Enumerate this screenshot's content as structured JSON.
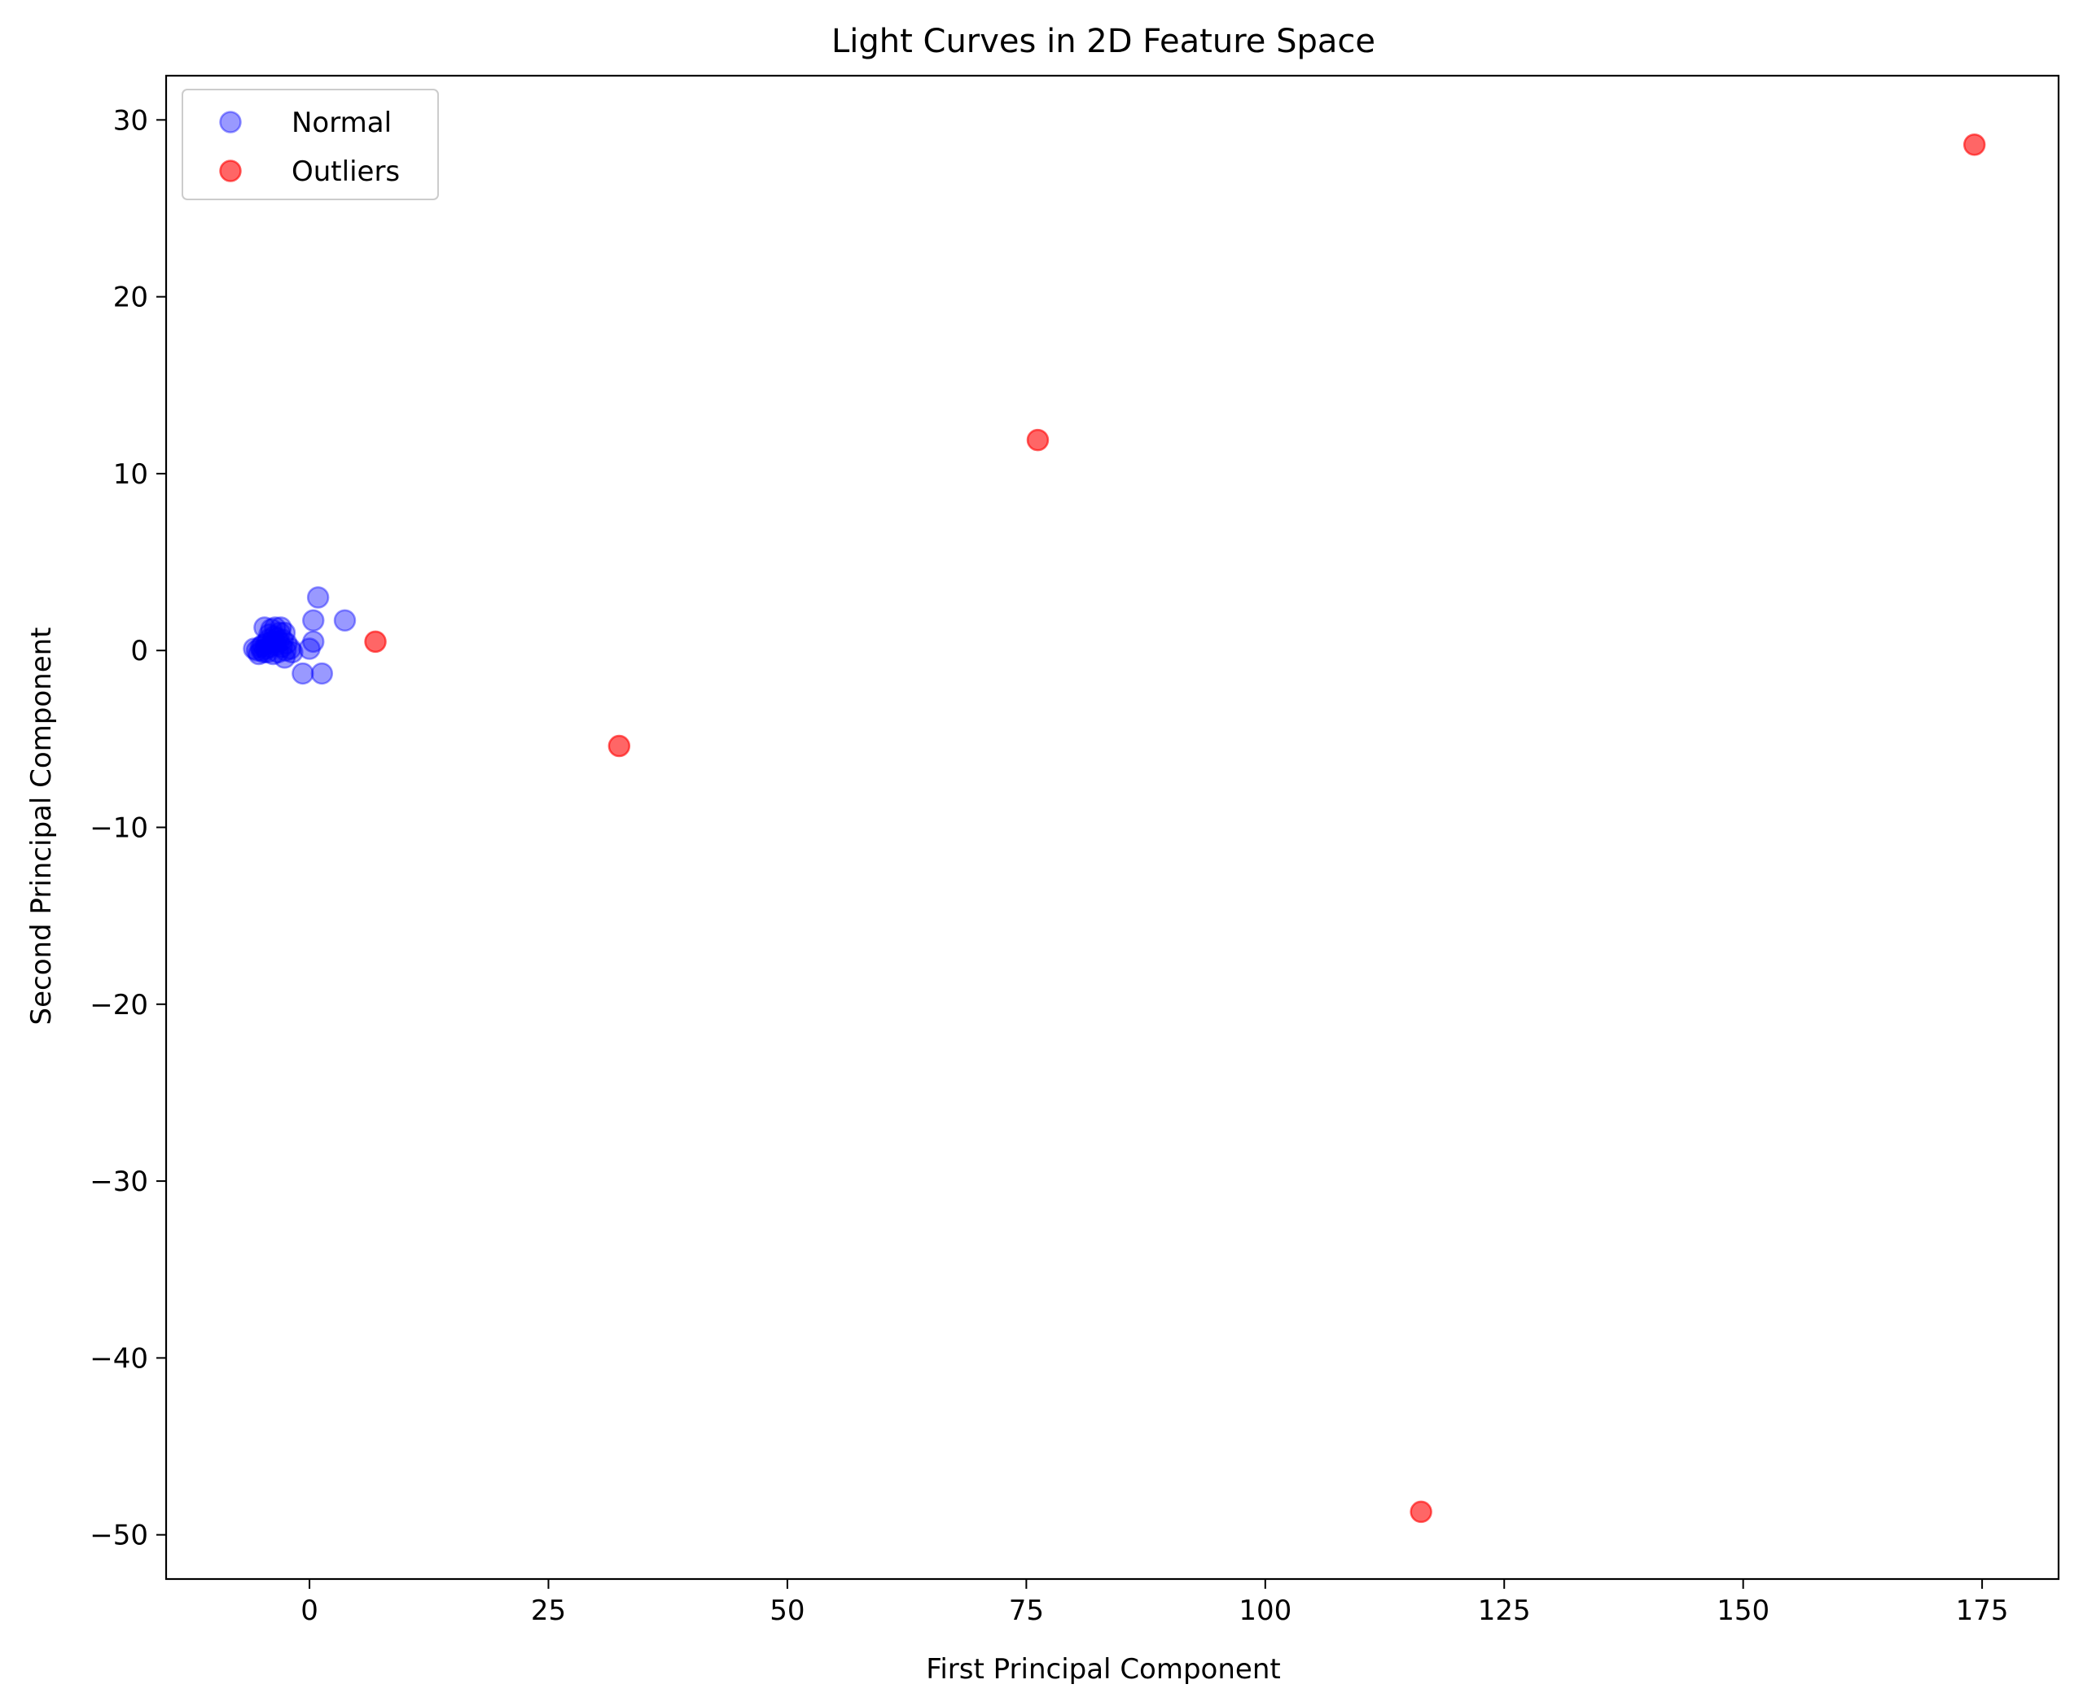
{
  "chart_data": {
    "type": "scatter",
    "title": "Light Curves in 2D Feature Space",
    "xlabel": "First Principal Component",
    "ylabel": "Second Principal Component",
    "xlim": [
      -15,
      183
    ],
    "ylim": [
      -52.5,
      32.5
    ],
    "xticks": [
      0,
      25,
      50,
      75,
      100,
      125,
      150,
      175
    ],
    "yticks": [
      30,
      20,
      10,
      0,
      -10,
      -20,
      -30,
      -40,
      -50
    ],
    "grid": false,
    "legend_position": "top-left",
    "series": [
      {
        "name": "Normal",
        "color": "#0000ff",
        "alpha": 0.4,
        "points": [
          [
            -5.8,
            0.1
          ],
          [
            -5.5,
            0.0
          ],
          [
            -5.3,
            -0.2
          ],
          [
            -5.1,
            0.2
          ],
          [
            -5.0,
            0.0
          ],
          [
            -4.9,
            0.3
          ],
          [
            -4.8,
            -0.1
          ],
          [
            -4.7,
            1.3
          ],
          [
            -4.6,
            0.1
          ],
          [
            -4.5,
            0.4
          ],
          [
            -4.4,
            -0.1
          ],
          [
            -4.3,
            0.6
          ],
          [
            -4.2,
            0.9
          ],
          [
            -4.1,
            0.2
          ],
          [
            -4.0,
            1.2
          ],
          [
            -3.9,
            0.5
          ],
          [
            -3.8,
            -0.2
          ],
          [
            -3.7,
            0.8
          ],
          [
            -3.6,
            1.3
          ],
          [
            -3.5,
            0.3
          ],
          [
            -3.4,
            0.7
          ],
          [
            -3.3,
            -0.1
          ],
          [
            -3.2,
            0.5
          ],
          [
            -3.1,
            1.0
          ],
          [
            -3.0,
            1.3
          ],
          [
            -2.9,
            0.2
          ],
          [
            -2.8,
            0.6
          ],
          [
            -2.6,
            1.0
          ],
          [
            -2.5,
            0.0
          ],
          [
            -2.4,
            0.4
          ],
          [
            -2.6,
            -0.4
          ],
          [
            -2.0,
            0.1
          ],
          [
            -1.8,
            -0.1
          ],
          [
            -0.7,
            -1.3
          ],
          [
            0.0,
            0.1
          ],
          [
            0.4,
            0.5
          ],
          [
            0.4,
            1.7
          ],
          [
            0.9,
            3.0
          ],
          [
            1.3,
            -1.3
          ],
          [
            3.7,
            1.7
          ]
        ]
      },
      {
        "name": "Outliers",
        "color": "#ff0000",
        "alpha": 0.6,
        "points": [
          [
            6.9,
            0.5
          ],
          [
            32.4,
            -5.4
          ],
          [
            76.2,
            11.9
          ],
          [
            116.3,
            -48.7
          ],
          [
            174.2,
            28.6
          ]
        ]
      }
    ]
  }
}
